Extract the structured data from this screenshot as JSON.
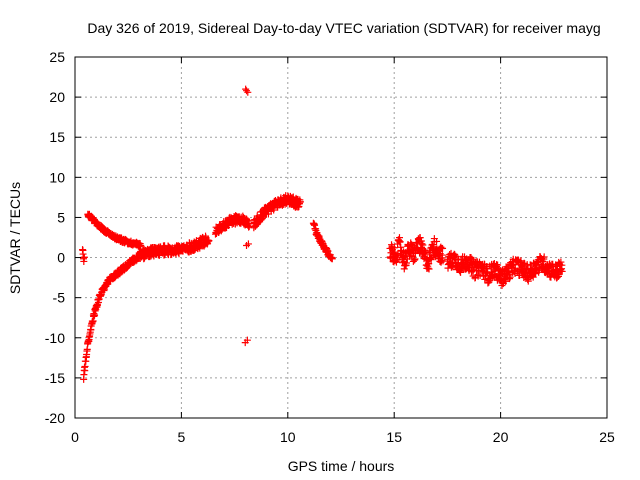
{
  "chart_data": {
    "type": "scatter",
    "title": "Day 326 of 2019, Sidereal Day-to-day VTEC variation (SDTVAR) for receiver mayg",
    "xlabel": "GPS time / hours",
    "ylabel": "SDTVAR / TECUs",
    "xlim": [
      0,
      25
    ],
    "ylim": [
      -20,
      25
    ],
    "xticks": [
      0,
      5,
      10,
      15,
      20,
      25
    ],
    "yticks": [
      -20,
      -15,
      -10,
      -5,
      0,
      5,
      10,
      15,
      20,
      25
    ],
    "grid": true,
    "marker": "plus",
    "color": "#ff0000",
    "segments": [
      {
        "name": "early-spike",
        "x0": 0.35,
        "x1": 0.45,
        "y": [
          1.2,
          0.8,
          0.3,
          -0.2,
          -0.6
        ],
        "jitter": 0.5
      },
      {
        "name": "upper-decay",
        "x0": 0.6,
        "x1": 3.1,
        "y": [
          5.4,
          4.6,
          3.9,
          3.3,
          2.8,
          2.4,
          2.1,
          1.9,
          1.7,
          1.6
        ],
        "jitter": 0.25
      },
      {
        "name": "deep-recovery",
        "x0": 0.4,
        "x1": 3.0,
        "y": [
          -15.0,
          -11.0,
          -8.5,
          -6.5,
          -5.0,
          -4.0,
          -3.2,
          -2.6,
          -2.2,
          -1.8,
          -1.4,
          -1.0,
          -0.6,
          -0.2,
          0.2
        ],
        "jitter": 0.35
      },
      {
        "name": "quiet-band",
        "x0": 3.0,
        "x1": 6.3,
        "y": [
          0.2,
          0.5,
          0.7,
          0.8,
          0.9,
          1.0,
          1.0,
          1.2,
          1.5,
          1.9,
          2.3
        ],
        "jitter": 0.6
      },
      {
        "name": "rise-one",
        "x0": 6.6,
        "x1": 8.2,
        "y": [
          3.3,
          3.8,
          4.3,
          4.6,
          4.8,
          4.6,
          4.2
        ],
        "jitter": 0.55
      },
      {
        "name": "rise-two",
        "x0": 8.4,
        "x1": 10.6,
        "y": [
          4.2,
          5.0,
          5.8,
          6.2,
          6.8,
          7.0,
          7.3,
          6.9,
          6.6
        ],
        "jitter": 0.6
      },
      {
        "name": "fall-eleven",
        "x0": 11.2,
        "x1": 12.1,
        "y": [
          4.3,
          3.0,
          2.2,
          1.5,
          0.9,
          0.3,
          -0.3
        ],
        "jitter": 0.3
      },
      {
        "name": "cluster-fifteen",
        "x0": 14.8,
        "x1": 17.3,
        "y": [
          1.2,
          0.0,
          1.5,
          -0.5,
          1.0,
          0.4,
          1.8,
          0.2,
          -0.6,
          1.5,
          0.8,
          0.0
        ],
        "jitter": 1.1
      },
      {
        "name": "cluster-eighteen",
        "x0": 17.5,
        "x1": 22.9,
        "y": [
          -0.6,
          -0.2,
          -1.0,
          -0.4,
          -1.6,
          -1.2,
          -2.2,
          -1.4,
          -2.6,
          -1.8,
          -1.0,
          -1.4,
          -2.0,
          -1.2,
          -0.6,
          -1.4,
          -1.8,
          -1.2
        ],
        "jitter": 1.0
      }
    ],
    "outliers": [
      {
        "x": 8.02,
        "y": 21.0
      },
      {
        "x": 8.12,
        "y": 20.6
      },
      {
        "x": 8.06,
        "y": 20.8
      },
      {
        "x": 8.0,
        "y": -10.6
      },
      {
        "x": 8.1,
        "y": -10.3
      },
      {
        "x": 8.06,
        "y": 1.5
      },
      {
        "x": 8.15,
        "y": 1.7
      }
    ]
  }
}
